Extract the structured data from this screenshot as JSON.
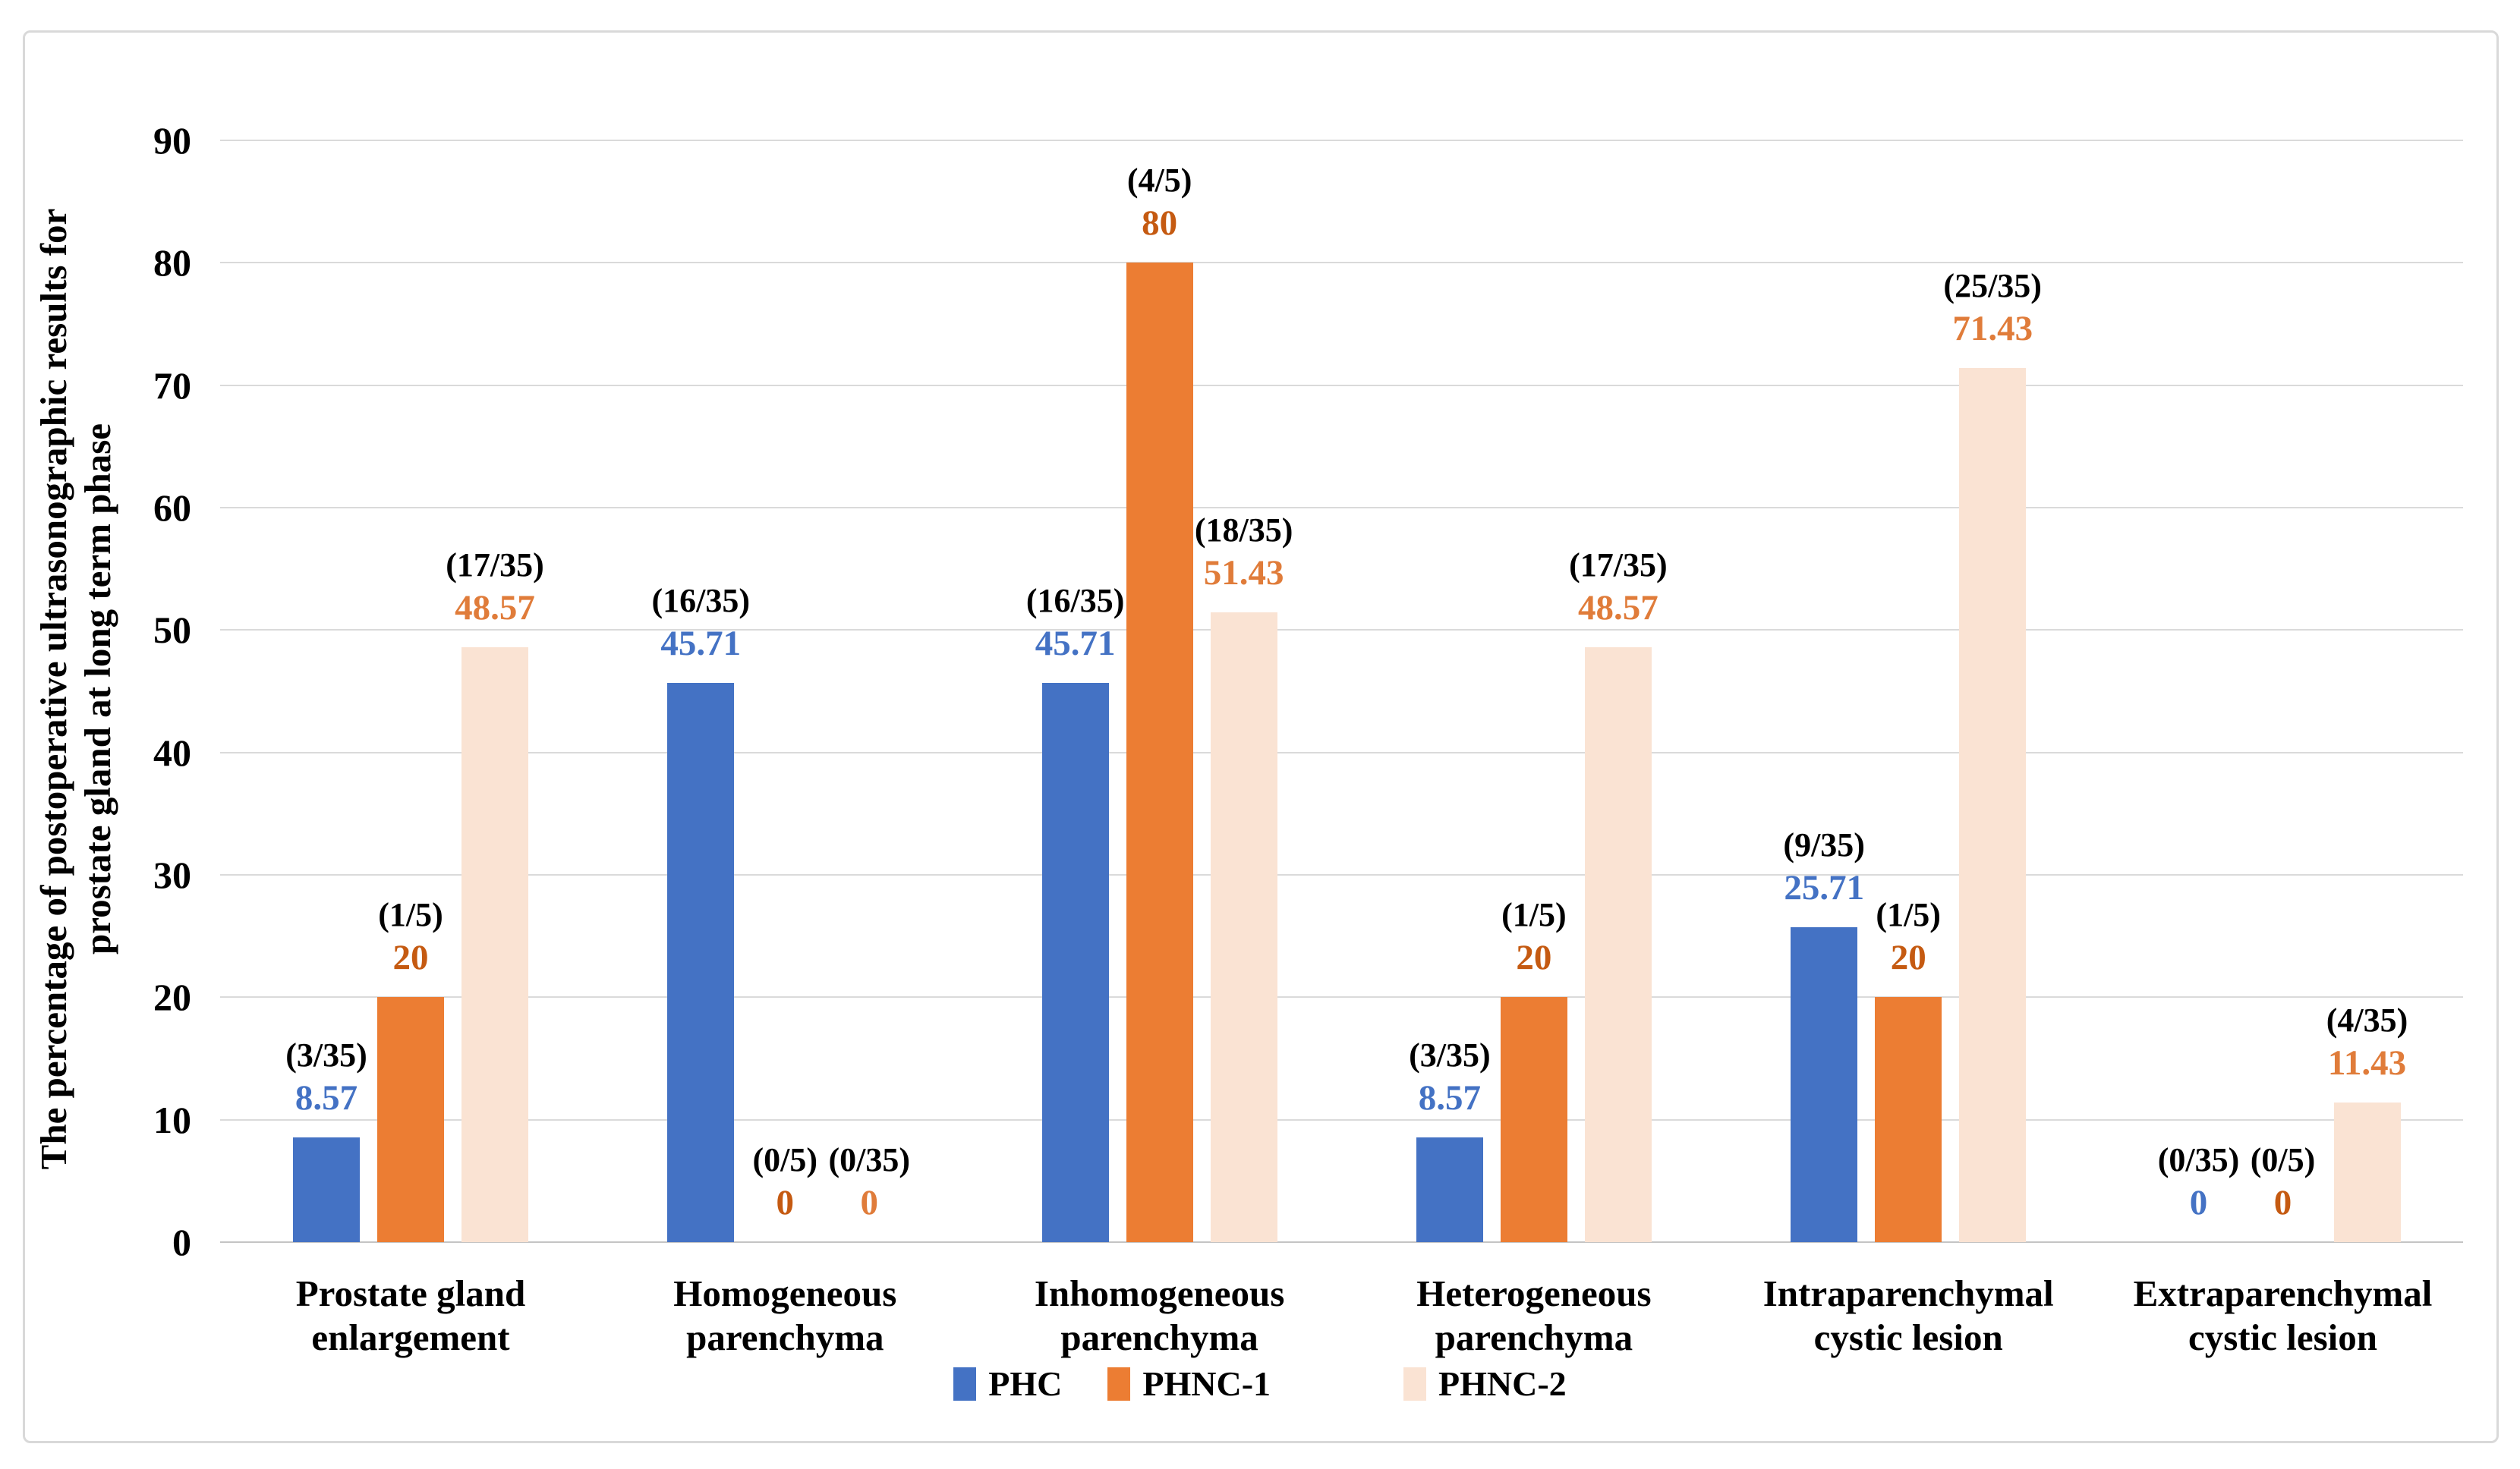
{
  "chart_data": {
    "type": "bar",
    "title": "",
    "ylabel_lines": [
      "The percentage of postoperative ultrasonographic results for",
      "prostate gland at long term phase"
    ],
    "ylim": [
      0,
      90
    ],
    "yticks": [
      "0",
      "10",
      "20",
      "30",
      "40",
      "50",
      "60",
      "70",
      "80",
      "90"
    ],
    "grid": true,
    "legend_position": "bottom",
    "categories": [
      [
        "Prostate gland",
        "enlargement"
      ],
      [
        "Homogeneous",
        "parenchyma"
      ],
      [
        "Inhomogeneous",
        "parenchyma"
      ],
      [
        "Heterogeneous",
        "parenchyma"
      ],
      [
        "Intraparenchymal",
        "cystic lesion"
      ],
      [
        "Extraparenchymal",
        "cystic lesion"
      ]
    ],
    "series": [
      {
        "name": "PHC",
        "color": "#4472C4",
        "label_color": "#4472C4",
        "values": [
          8.57,
          45.71,
          45.71,
          8.57,
          25.71,
          0
        ],
        "value_labels": [
          "8.57",
          "45.71",
          "45.71",
          "8.57",
          "25.71",
          "0"
        ],
        "fractions": [
          "(3/35)",
          "(16/35)",
          "(16/35)",
          "(3/35)",
          "(9/35)",
          "(0/35)"
        ]
      },
      {
        "name": "PHNC-1",
        "color": "#EC7D33",
        "label_color": "#C55A11",
        "values": [
          20,
          0,
          80,
          20,
          20,
          0
        ],
        "value_labels": [
          "20",
          "0",
          "80",
          "20",
          "20",
          "0"
        ],
        "fractions": [
          "(1/5)",
          "(0/5)",
          "(4/5)",
          "(1/5)",
          "(1/5)",
          "(0/5)"
        ]
      },
      {
        "name": "PHNC-2",
        "color": "#FAE3D3",
        "label_color": "#E07C3A",
        "values": [
          48.57,
          0,
          51.43,
          48.57,
          71.43,
          11.43
        ],
        "value_labels": [
          "48.57",
          "0",
          "51.43",
          "48.57",
          "71.43",
          "11.43"
        ],
        "fractions": [
          "(17/35)",
          "(0/35)",
          "(18/35)",
          "(17/35)",
          "(25/35)",
          "(4/35)"
        ]
      }
    ],
    "colors": {
      "gridline": "#dadada",
      "axis_text": "#000000"
    }
  }
}
